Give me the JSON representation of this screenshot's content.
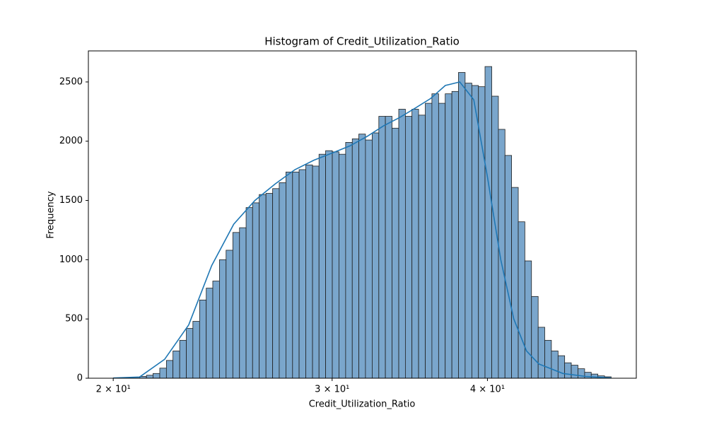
{
  "chart_data": {
    "type": "histogram",
    "title": "Histogram of Credit_Utilization_Ratio",
    "x_label": "Credit_Utilization_Ratio",
    "y_label": "Frequency",
    "x_scale": "log",
    "color": "#7aa6cc",
    "edge_color": "#1f1f1f",
    "bins": [
      20.0,
      20.25,
      20.5,
      20.75,
      21.01,
      21.27,
      21.53,
      21.8,
      22.07,
      22.34,
      22.62,
      22.9,
      23.18,
      23.47,
      23.76,
      24.05,
      24.35,
      24.65,
      24.96,
      25.27,
      25.58,
      25.89,
      26.21,
      26.54,
      26.87,
      27.2,
      27.54,
      27.88,
      28.22,
      28.57,
      28.93,
      29.28,
      29.64,
      30.01,
      30.38,
      30.76,
      31.14,
      31.52,
      31.91,
      32.31,
      32.71,
      33.11,
      33.52,
      33.94,
      34.36,
      34.78,
      35.21,
      35.65,
      36.09,
      36.54,
      36.99,
      37.45,
      37.91,
      38.38,
      38.86,
      39.34,
      39.82,
      40.32,
      40.82,
      41.32,
      41.83,
      42.35,
      42.87,
      43.4,
      43.94,
      44.48,
      45.03,
      45.59,
      46.15,
      46.72,
      47.3,
      47.89,
      48.48,
      49.08,
      49.69,
      50.3
    ],
    "values": [
      2,
      3,
      5,
      8,
      15,
      25,
      40,
      85,
      150,
      230,
      320,
      420,
      480,
      660,
      760,
      820,
      1000,
      1080,
      1230,
      1270,
      1440,
      1480,
      1550,
      1560,
      1600,
      1650,
      1740,
      1740,
      1760,
      1800,
      1790,
      1890,
      1920,
      1910,
      1890,
      1990,
      2020,
      2060,
      2010,
      2070,
      2210,
      2210,
      2110,
      2270,
      2210,
      2270,
      2220,
      2320,
      2400,
      2320,
      2400,
      2420,
      2580,
      2490,
      2470,
      2460,
      2630,
      2380,
      2100,
      1880,
      1610,
      1320,
      990,
      690,
      430,
      320,
      230,
      190,
      130,
      110,
      80,
      50,
      35,
      20,
      12
    ],
    "kde": {
      "color": "#1f77b4",
      "x": [
        20,
        21,
        22,
        23,
        24,
        25,
        26,
        27,
        28,
        29,
        30,
        31,
        32,
        33,
        34,
        35,
        36,
        37,
        38,
        39,
        40,
        41,
        42,
        43,
        44,
        46,
        48,
        50.3
      ],
      "y": [
        2,
        10,
        160,
        450,
        950,
        1300,
        1500,
        1640,
        1760,
        1840,
        1900,
        1960,
        2040,
        2130,
        2200,
        2280,
        2360,
        2470,
        2500,
        2350,
        1700,
        1000,
        500,
        230,
        120,
        40,
        15,
        2
      ]
    },
    "xlim": [
      19.1,
      52.7
    ],
    "ylim": [
      0,
      2762
    ],
    "xticks": [
      {
        "value": 20,
        "label": "2 × 10¹"
      },
      {
        "value": 30,
        "label": "3 × 10¹"
      },
      {
        "value": 40,
        "label": "4 × 10¹"
      }
    ],
    "yticks": [
      0,
      500,
      1000,
      1500,
      2000,
      2500
    ]
  }
}
